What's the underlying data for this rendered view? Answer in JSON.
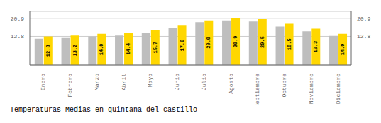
{
  "chart_data": {
    "type": "bar",
    "title": "Temperaturas Medias en quintana del castillo",
    "categories": [
      "Enero",
      "Febrero",
      "Marzo",
      "Abril",
      "Mayo",
      "Junio",
      "Julio",
      "Agosto",
      "Septiembre",
      "Octubre",
      "Noviembre",
      "Diciembre"
    ],
    "series": [
      {
        "color": "#BEBEBE",
        "values": [
          11.8,
          12.1,
          12.8,
          13.2,
          14.4,
          16.5,
          19.2,
          20.0,
          19.5,
          17.2,
          15.1,
          13.0
        ]
      },
      {
        "color": "#FFD700",
        "values": [
          12.8,
          13.2,
          14.0,
          14.4,
          15.7,
          17.6,
          20.0,
          20.9,
          20.5,
          18.5,
          16.3,
          14.0
        ],
        "data_labels": true,
        "value_labels": [
          "12.8",
          "13.2",
          "14.0",
          "14.4",
          "15.7",
          "17.6",
          "20.0",
          "20.9",
          "20.5",
          "18.5",
          "16.3",
          "14.0"
        ]
      }
    ],
    "ylim": [
      0,
      24
    ],
    "yticks": [
      12.8,
      20.9
    ],
    "y2lim": [
      0,
      24
    ],
    "y2ticks": [
      12.8,
      20.9
    ],
    "grid": true
  }
}
